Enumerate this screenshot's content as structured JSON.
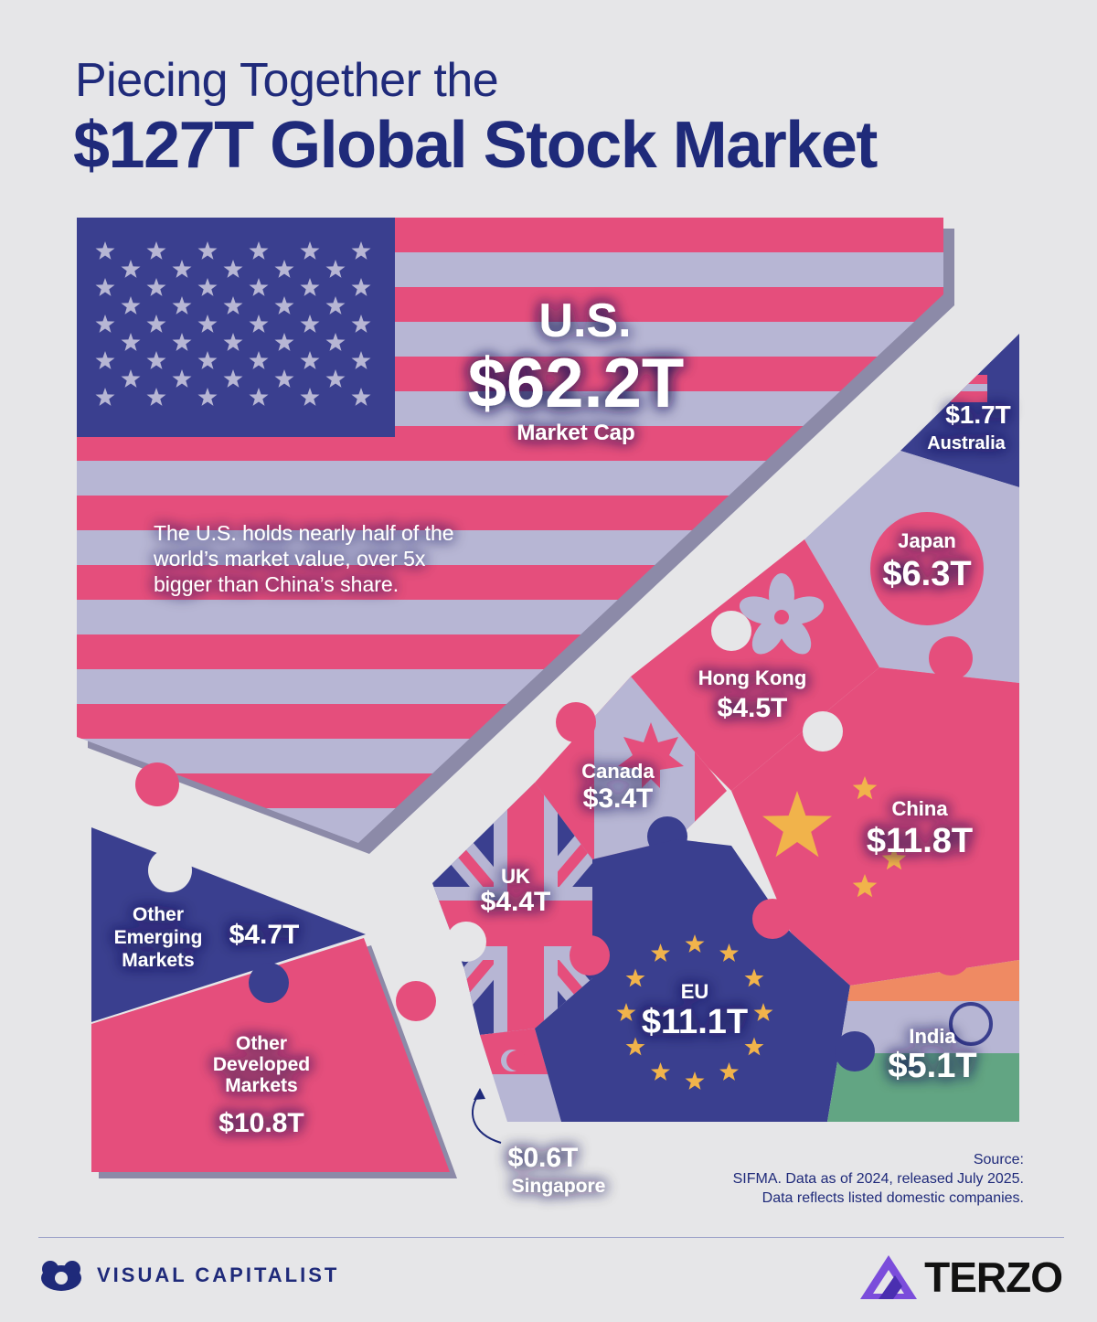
{
  "header": {
    "title_line1": "Piecing Together the",
    "title_line2": "$127T Global Stock Market"
  },
  "chart_data": {
    "type": "treemap",
    "title": "$127T Global Stock Market",
    "unit": "USD trillions (market cap)",
    "categories": [
      "U.S.",
      "China",
      "EU",
      "Other Developed Markets",
      "Japan",
      "India",
      "Other Emerging Markets",
      "Hong Kong",
      "UK",
      "Canada",
      "Australia",
      "Singapore"
    ],
    "values": [
      62.2,
      11.8,
      11.1,
      10.8,
      6.3,
      5.1,
      4.7,
      4.5,
      4.4,
      3.4,
      1.7,
      0.6
    ],
    "labels": {
      "us_name": "U.S.",
      "us_value": "$62.2T",
      "us_sub": "Market Cap",
      "australia_value": "$1.7T",
      "australia_name": "Australia",
      "japan_name": "Japan",
      "japan_value": "$6.3T",
      "hongkong_name": "Hong Kong",
      "hongkong_value": "$4.5T",
      "canada_name": "Canada",
      "canada_value": "$3.4T",
      "china_name": "China",
      "china_value": "$11.8T",
      "uk_name": "UK",
      "uk_value": "$4.4T",
      "eu_name": "EU",
      "eu_value": "$11.1T",
      "india_name": "India",
      "india_value": "$5.1T",
      "oem_name_1": "Other",
      "oem_name_2": "Emerging",
      "oem_name_3": "Markets",
      "oem_value": "$4.7T",
      "odm_name_1": "Other",
      "odm_name_2": "Developed",
      "odm_name_3": "Markets",
      "odm_value": "$10.8T",
      "singapore_value": "$0.6T",
      "singapore_name": "Singapore"
    },
    "annotation": {
      "line1": "The U.S. holds nearly half of the",
      "line2": "world’s market value, over 5x",
      "line3": "bigger than China’s share."
    },
    "colors": {
      "navy": "#3a3f8f",
      "pink": "#e54e7c",
      "lavender": "#b7b6d4",
      "background": "#e6e6e8",
      "title": "#1f2a7a"
    }
  },
  "source": {
    "line1": "Source:",
    "line2": "SIFMA. Data as of 2024, released July 2025.",
    "line3": "Data reflects listed domestic companies."
  },
  "footer": {
    "brand_left": "VISUAL CAPITALIST",
    "brand_right": "TERZO",
    "left_logo_icon": "visual-capitalist-logo-icon",
    "right_logo_icon": "terzo-logo-icon"
  }
}
